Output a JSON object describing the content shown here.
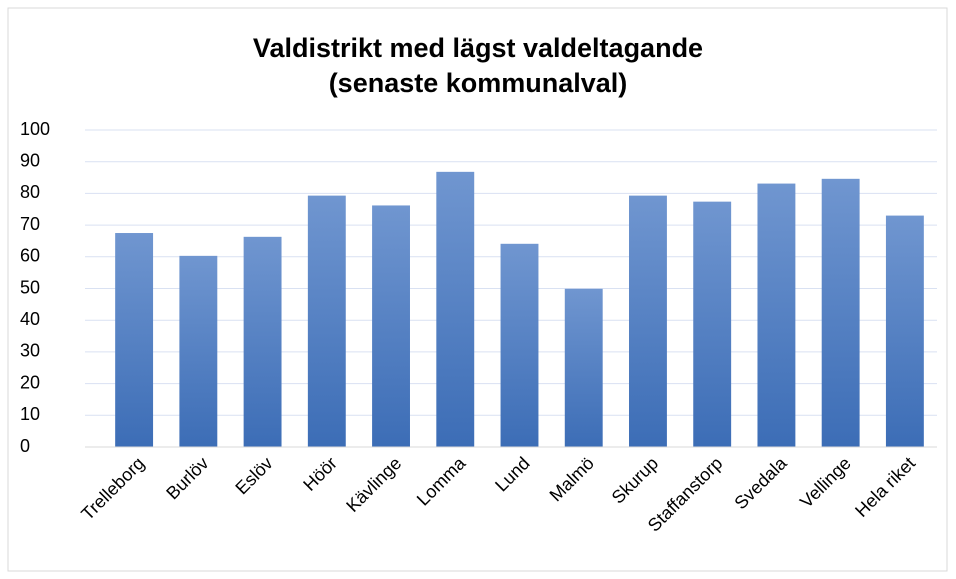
{
  "chart_data": {
    "type": "bar",
    "title": [
      "Valdistrikt med lägst valdeltagande",
      "(senaste kommunalval)"
    ],
    "categories": [
      "Trelleborg",
      "Burlöv",
      "Eslöv",
      "Höör",
      "Kävlinge",
      "Lomma",
      "Lund",
      "Malmö",
      "Skurup",
      "Staffanstorp",
      "Svedala",
      "Vellinge",
      "Hela riket"
    ],
    "values": [
      67.5,
      60.3,
      66.3,
      79.3,
      76.2,
      86.8,
      64.1,
      49.9,
      79.3,
      77.4,
      83.1,
      84.6,
      73.0
    ],
    "color": "#4472c4",
    "ylim": [
      0,
      100
    ],
    "yticks": [
      0,
      10,
      20,
      30,
      40,
      50,
      60,
      70,
      80,
      90,
      100
    ],
    "grid": true
  }
}
